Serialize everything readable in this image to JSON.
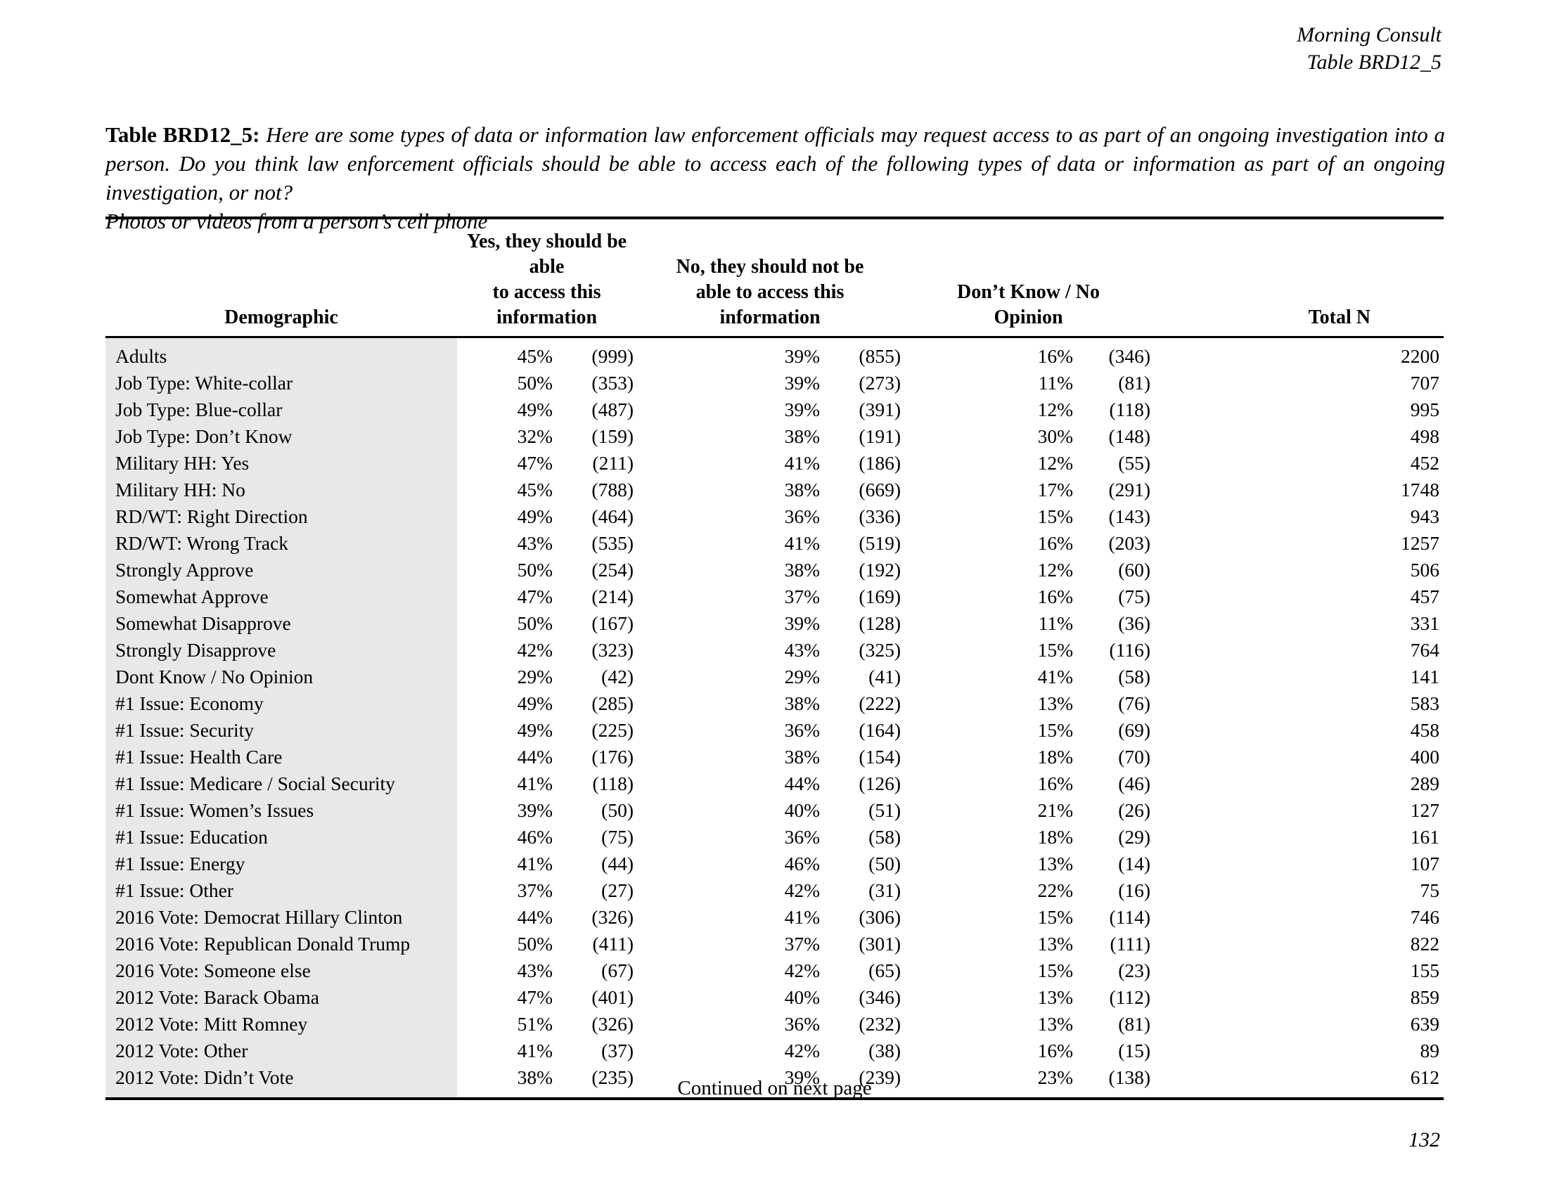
{
  "page": {
    "header_right": {
      "line1": "Morning Consult",
      "line2": "Table BRD12_5"
    },
    "title": {
      "label": "Table BRD12_5:",
      "question": "Here are some types of data or information law enforcement officials may request access to as part of an ongoing investigation into a person.  Do you think law enforcement officials should be able to access each of the following types of data or information as part of an ongoing investigation, or not?",
      "subtitle": "Photos or videos from a person’s cell phone"
    },
    "footer": {
      "continued": "Continued on next page",
      "page_number": "132"
    }
  },
  "colors": {
    "row_shade": "#e8e8e8",
    "rule": "#000000",
    "text": "#000000"
  },
  "table": {
    "columns": {
      "demographic": "Demographic",
      "yes": "Yes, they should be able\nto access this\ninformation",
      "no": "No, they should not be\nable to access this\ninformation",
      "dk": "Don’t Know / No\nOpinion",
      "total": "Total N"
    },
    "rows": [
      {
        "label": "Adults",
        "yes_pct": "45%",
        "yes_n": "(999)",
        "no_pct": "39%",
        "no_n": "(855)",
        "dk_pct": "16%",
        "dk_n": "(346)",
        "total": "2200"
      },
      {
        "label": "Job Type: White-collar",
        "yes_pct": "50%",
        "yes_n": "(353)",
        "no_pct": "39%",
        "no_n": "(273)",
        "dk_pct": "11%",
        "dk_n": "(81)",
        "total": "707"
      },
      {
        "label": "Job Type: Blue-collar",
        "yes_pct": "49%",
        "yes_n": "(487)",
        "no_pct": "39%",
        "no_n": "(391)",
        "dk_pct": "12%",
        "dk_n": "(118)",
        "total": "995"
      },
      {
        "label": "Job Type: Don’t Know",
        "yes_pct": "32%",
        "yes_n": "(159)",
        "no_pct": "38%",
        "no_n": "(191)",
        "dk_pct": "30%",
        "dk_n": "(148)",
        "total": "498"
      },
      {
        "label": "Military HH: Yes",
        "yes_pct": "47%",
        "yes_n": "(211)",
        "no_pct": "41%",
        "no_n": "(186)",
        "dk_pct": "12%",
        "dk_n": "(55)",
        "total": "452"
      },
      {
        "label": "Military HH: No",
        "yes_pct": "45%",
        "yes_n": "(788)",
        "no_pct": "38%",
        "no_n": "(669)",
        "dk_pct": "17%",
        "dk_n": "(291)",
        "total": "1748"
      },
      {
        "label": "RD/WT: Right Direction",
        "yes_pct": "49%",
        "yes_n": "(464)",
        "no_pct": "36%",
        "no_n": "(336)",
        "dk_pct": "15%",
        "dk_n": "(143)",
        "total": "943"
      },
      {
        "label": "RD/WT: Wrong Track",
        "yes_pct": "43%",
        "yes_n": "(535)",
        "no_pct": "41%",
        "no_n": "(519)",
        "dk_pct": "16%",
        "dk_n": "(203)",
        "total": "1257"
      },
      {
        "label": "Strongly Approve",
        "yes_pct": "50%",
        "yes_n": "(254)",
        "no_pct": "38%",
        "no_n": "(192)",
        "dk_pct": "12%",
        "dk_n": "(60)",
        "total": "506"
      },
      {
        "label": "Somewhat Approve",
        "yes_pct": "47%",
        "yes_n": "(214)",
        "no_pct": "37%",
        "no_n": "(169)",
        "dk_pct": "16%",
        "dk_n": "(75)",
        "total": "457"
      },
      {
        "label": "Somewhat Disapprove",
        "yes_pct": "50%",
        "yes_n": "(167)",
        "no_pct": "39%",
        "no_n": "(128)",
        "dk_pct": "11%",
        "dk_n": "(36)",
        "total": "331"
      },
      {
        "label": "Strongly Disapprove",
        "yes_pct": "42%",
        "yes_n": "(323)",
        "no_pct": "43%",
        "no_n": "(325)",
        "dk_pct": "15%",
        "dk_n": "(116)",
        "total": "764"
      },
      {
        "label": "Dont Know / No Opinion",
        "yes_pct": "29%",
        "yes_n": "(42)",
        "no_pct": "29%",
        "no_n": "(41)",
        "dk_pct": "41%",
        "dk_n": "(58)",
        "total": "141"
      },
      {
        "label": "#1 Issue: Economy",
        "yes_pct": "49%",
        "yes_n": "(285)",
        "no_pct": "38%",
        "no_n": "(222)",
        "dk_pct": "13%",
        "dk_n": "(76)",
        "total": "583"
      },
      {
        "label": "#1 Issue: Security",
        "yes_pct": "49%",
        "yes_n": "(225)",
        "no_pct": "36%",
        "no_n": "(164)",
        "dk_pct": "15%",
        "dk_n": "(69)",
        "total": "458"
      },
      {
        "label": "#1 Issue: Health Care",
        "yes_pct": "44%",
        "yes_n": "(176)",
        "no_pct": "38%",
        "no_n": "(154)",
        "dk_pct": "18%",
        "dk_n": "(70)",
        "total": "400"
      },
      {
        "label": "#1 Issue: Medicare / Social Security",
        "yes_pct": "41%",
        "yes_n": "(118)",
        "no_pct": "44%",
        "no_n": "(126)",
        "dk_pct": "16%",
        "dk_n": "(46)",
        "total": "289"
      },
      {
        "label": "#1 Issue: Women’s Issues",
        "yes_pct": "39%",
        "yes_n": "(50)",
        "no_pct": "40%",
        "no_n": "(51)",
        "dk_pct": "21%",
        "dk_n": "(26)",
        "total": "127"
      },
      {
        "label": "#1 Issue: Education",
        "yes_pct": "46%",
        "yes_n": "(75)",
        "no_pct": "36%",
        "no_n": "(58)",
        "dk_pct": "18%",
        "dk_n": "(29)",
        "total": "161"
      },
      {
        "label": "#1 Issue: Energy",
        "yes_pct": "41%",
        "yes_n": "(44)",
        "no_pct": "46%",
        "no_n": "(50)",
        "dk_pct": "13%",
        "dk_n": "(14)",
        "total": "107"
      },
      {
        "label": "#1 Issue: Other",
        "yes_pct": "37%",
        "yes_n": "(27)",
        "no_pct": "42%",
        "no_n": "(31)",
        "dk_pct": "22%",
        "dk_n": "(16)",
        "total": "75"
      },
      {
        "label": "2016 Vote: Democrat Hillary Clinton",
        "yes_pct": "44%",
        "yes_n": "(326)",
        "no_pct": "41%",
        "no_n": "(306)",
        "dk_pct": "15%",
        "dk_n": "(114)",
        "total": "746"
      },
      {
        "label": "2016 Vote: Republican Donald Trump",
        "yes_pct": "50%",
        "yes_n": "(411)",
        "no_pct": "37%",
        "no_n": "(301)",
        "dk_pct": "13%",
        "dk_n": "(111)",
        "total": "822"
      },
      {
        "label": "2016 Vote: Someone else",
        "yes_pct": "43%",
        "yes_n": "(67)",
        "no_pct": "42%",
        "no_n": "(65)",
        "dk_pct": "15%",
        "dk_n": "(23)",
        "total": "155"
      },
      {
        "label": "2012 Vote: Barack Obama",
        "yes_pct": "47%",
        "yes_n": "(401)",
        "no_pct": "40%",
        "no_n": "(346)",
        "dk_pct": "13%",
        "dk_n": "(112)",
        "total": "859"
      },
      {
        "label": "2012 Vote: Mitt Romney",
        "yes_pct": "51%",
        "yes_n": "(326)",
        "no_pct": "36%",
        "no_n": "(232)",
        "dk_pct": "13%",
        "dk_n": "(81)",
        "total": "639"
      },
      {
        "label": "2012 Vote: Other",
        "yes_pct": "41%",
        "yes_n": "(37)",
        "no_pct": "42%",
        "no_n": "(38)",
        "dk_pct": "16%",
        "dk_n": "(15)",
        "total": "89"
      },
      {
        "label": "2012 Vote: Didn’t Vote",
        "yes_pct": "38%",
        "yes_n": "(235)",
        "no_pct": "39%",
        "no_n": "(239)",
        "dk_pct": "23%",
        "dk_n": "(138)",
        "total": "612"
      }
    ]
  }
}
